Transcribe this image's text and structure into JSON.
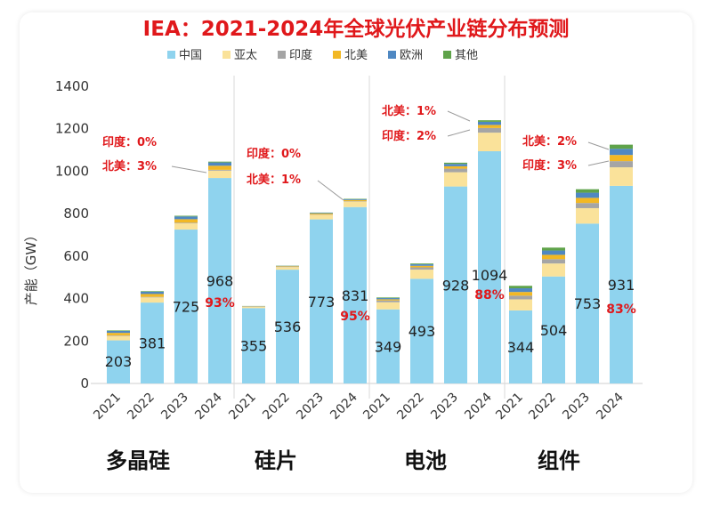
{
  "chart_data": {
    "type": "bar",
    "stacked": true,
    "title": "IEA：2021-2024年全球光伏产业链分布预测",
    "ylabel": "产能（GW）",
    "xlabel": "",
    "ylim": [
      0,
      1400
    ],
    "yticks": [
      "0",
      "200",
      "400",
      "600",
      "800",
      "1000",
      "1200",
      "1400"
    ],
    "grid": false,
    "legend_position": "top",
    "legend": [
      {
        "name": "中国",
        "color": "#8fd3ee"
      },
      {
        "name": "亚太",
        "color": "#fae29a"
      },
      {
        "name": "印度",
        "color": "#a5a5a5"
      },
      {
        "name": "北美",
        "color": "#f2b824"
      },
      {
        "name": "欧洲",
        "color": "#4f88c2"
      },
      {
        "name": "其他",
        "color": "#5fa34a"
      }
    ],
    "groups": [
      {
        "name": "多晶硅",
        "categories": [
          "2021",
          "2022",
          "2023",
          "2024"
        ],
        "china": [
          203,
          381,
          725,
          968
        ],
        "china_labels": [
          "203",
          "381",
          "725",
          "968"
        ],
        "totals": [
          250,
          435,
          790,
          1045
        ],
        "share_label": "93%",
        "annotations": [
          "印度：0%",
          "北美：3%"
        ]
      },
      {
        "name": "硅片",
        "categories": [
          "2021",
          "2022",
          "2023",
          "2024"
        ],
        "china": [
          355,
          536,
          773,
          831
        ],
        "china_labels": [
          "355",
          "536",
          "773",
          "831"
        ],
        "totals": [
          365,
          555,
          805,
          870
        ],
        "share_label": "95%",
        "annotations": [
          "印度：0%",
          "北美：1%"
        ]
      },
      {
        "name": "电池",
        "categories": [
          "2021",
          "2022",
          "2023",
          "2024"
        ],
        "china": [
          349,
          493,
          928,
          1094
        ],
        "china_labels": [
          "349",
          "493",
          "928",
          "1094"
        ],
        "totals": [
          405,
          565,
          1040,
          1240
        ],
        "share_label": "88%",
        "annotations": [
          "北美：1%",
          "印度：2%"
        ]
      },
      {
        "name": "组件",
        "categories": [
          "2021",
          "2022",
          "2023",
          "2024"
        ],
        "china": [
          344,
          504,
          753,
          931
        ],
        "china_labels": [
          "344",
          "504",
          "753",
          "931"
        ],
        "totals": [
          460,
          640,
          915,
          1125
        ],
        "share_label": "83%",
        "annotations": [
          "北美：2%",
          "印度：3%"
        ]
      }
    ]
  }
}
